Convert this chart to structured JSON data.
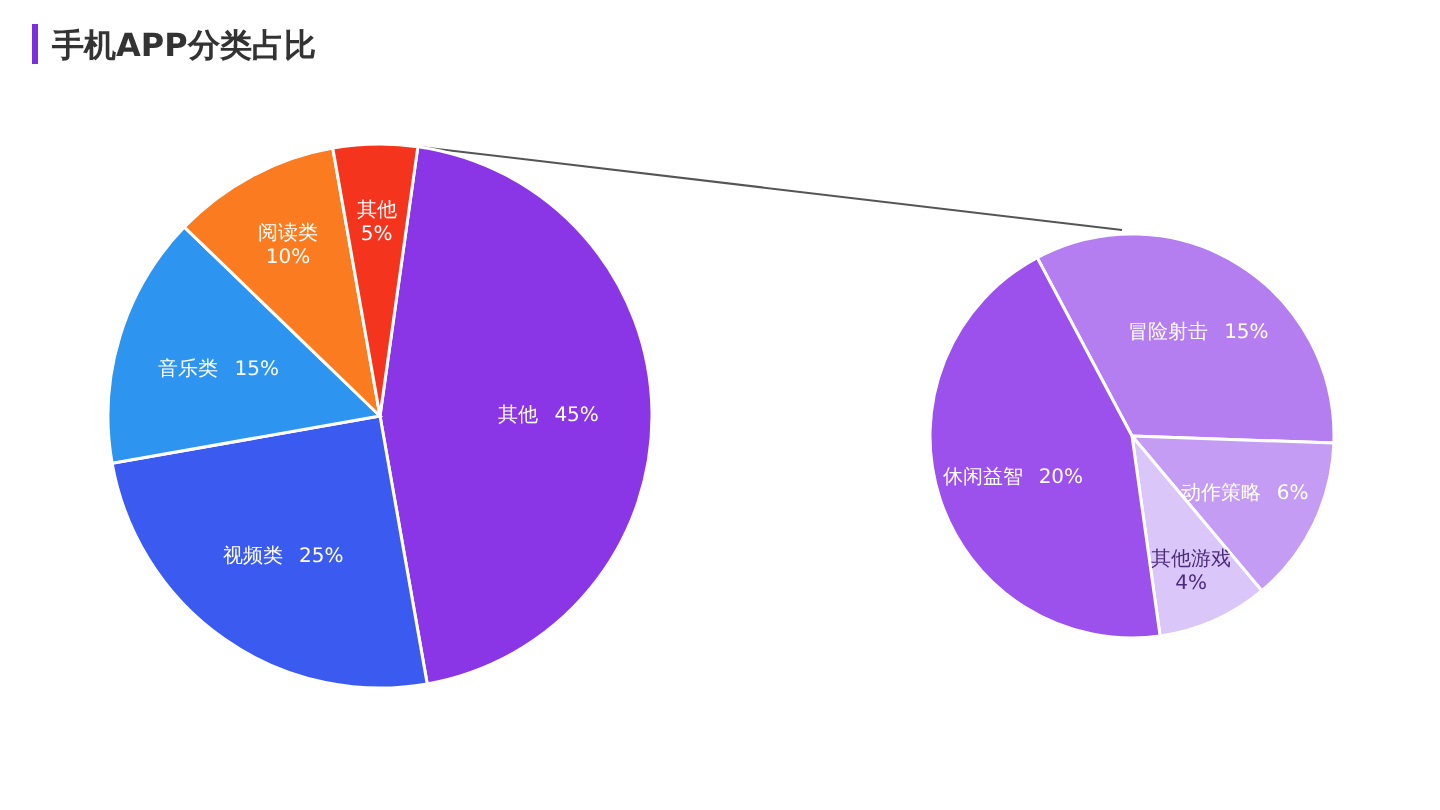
{
  "chart_data": [
    {
      "type": "pie",
      "title": "手机APP分类占比",
      "categories": [
        "其他",
        "视频类",
        "音乐类",
        "阅读类",
        "其他"
      ],
      "values": [
        45,
        25,
        15,
        10,
        5
      ],
      "value_labels": [
        "45%",
        "25%",
        "15%",
        "10%",
        "5%"
      ],
      "colors": [
        "#8a36e6",
        "#3b5bf0",
        "#2d95f0",
        "#fb7b20",
        "#f4341c"
      ]
    },
    {
      "type": "pie",
      "categories": [
        "冒险射击",
        "动作策略",
        "其他游戏",
        "休闲益智"
      ],
      "values": [
        15,
        6,
        4,
        20
      ],
      "value_labels": [
        "15%",
        "6%",
        "4%",
        "20%"
      ],
      "colors": [
        "#b47ef0",
        "#c49cf3",
        "#dac6f8",
        "#9c50ec"
      ]
    }
  ]
}
